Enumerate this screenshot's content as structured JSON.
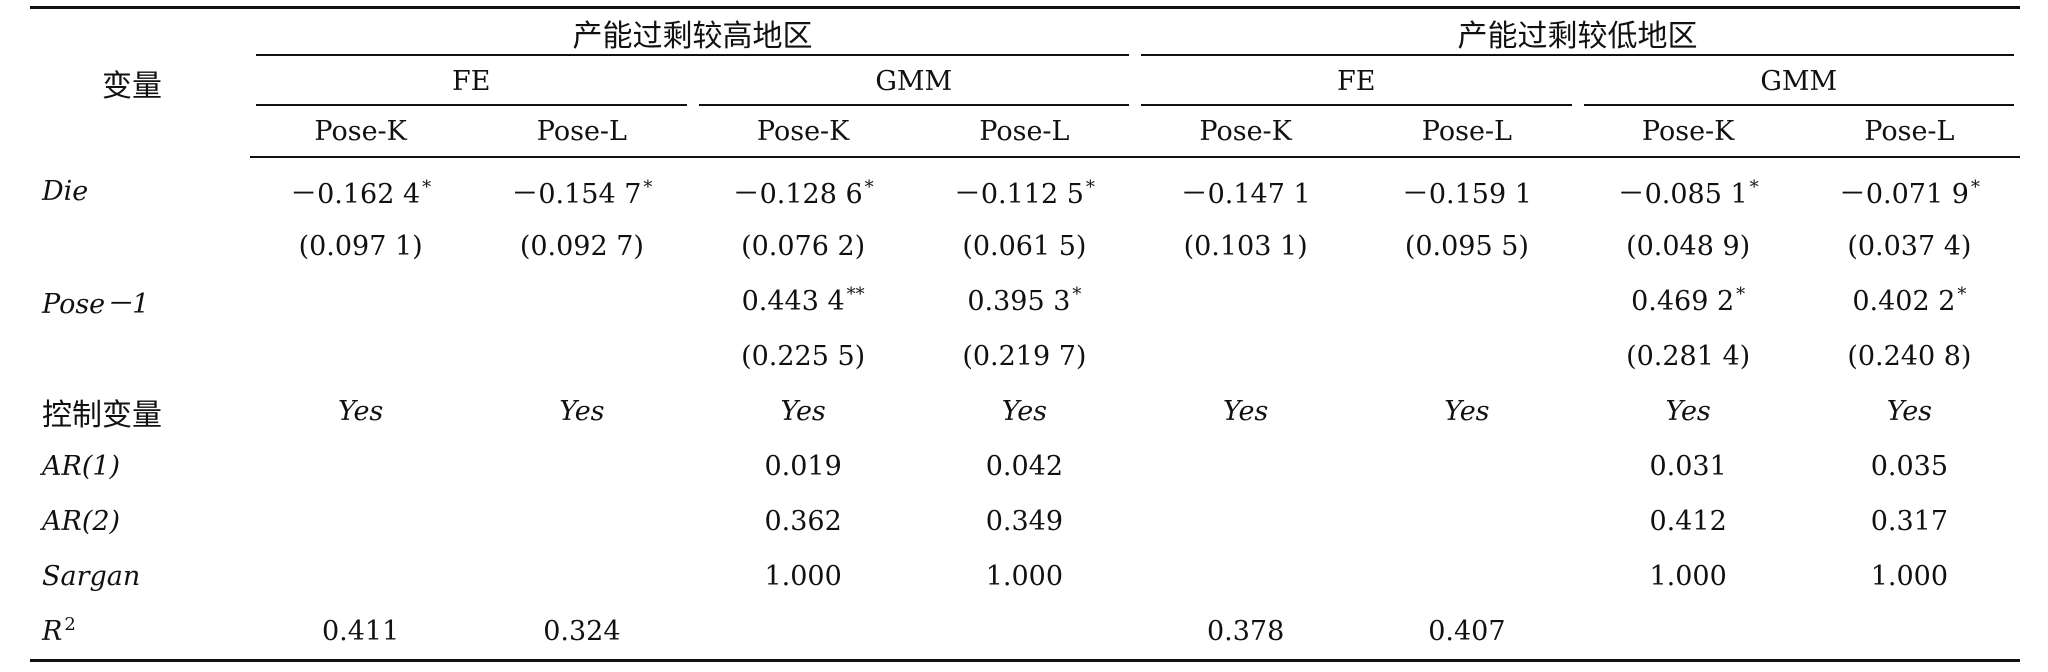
{
  "header": {
    "variable_label": "变量",
    "groups": [
      {
        "label": "产能过剩较高地区",
        "methods": [
          {
            "label": "FE",
            "cols": [
              "Pose-K",
              "Pose-L"
            ]
          },
          {
            "label": "GMM",
            "cols": [
              "Pose-K",
              "Pose-L"
            ]
          }
        ]
      },
      {
        "label": "产能过剩较低地区",
        "methods": [
          {
            "label": "FE",
            "cols": [
              "Pose-K",
              "Pose-L"
            ]
          },
          {
            "label": "GMM",
            "cols": [
              "Pose-K",
              "Pose-L"
            ]
          }
        ]
      }
    ]
  },
  "rows": [
    {
      "var": "Die",
      "var_italic": true,
      "cells": [
        {
          "v": "－0.162 4",
          "s": "*"
        },
        {
          "v": "－0.154 7",
          "s": "*"
        },
        {
          "v": "－0.128 6",
          "s": "*"
        },
        {
          "v": "－0.112 5",
          "s": "*"
        },
        {
          "v": "－0.147 1",
          "s": ""
        },
        {
          "v": "－0.159 1",
          "s": ""
        },
        {
          "v": "－0.085 1",
          "s": "*"
        },
        {
          "v": "－0.071 9",
          "s": "*"
        }
      ]
    },
    {
      "var": "",
      "cells": [
        {
          "v": "(0.097 1)",
          "s": ""
        },
        {
          "v": "(0.092 7)",
          "s": ""
        },
        {
          "v": "(0.076 2)",
          "s": ""
        },
        {
          "v": "(0.061 5)",
          "s": ""
        },
        {
          "v": "(0.103 1)",
          "s": ""
        },
        {
          "v": "(0.095 5)",
          "s": ""
        },
        {
          "v": "(0.048 9)",
          "s": ""
        },
        {
          "v": "(0.037 4)",
          "s": ""
        }
      ]
    },
    {
      "var": "Pose－1",
      "var_italic": true,
      "cells": [
        {
          "v": "",
          "s": ""
        },
        {
          "v": "",
          "s": ""
        },
        {
          "v": "0.443 4",
          "s": "**"
        },
        {
          "v": "0.395 3",
          "s": "*"
        },
        {
          "v": "",
          "s": ""
        },
        {
          "v": "",
          "s": ""
        },
        {
          "v": "0.469 2",
          "s": "*"
        },
        {
          "v": "0.402 2",
          "s": "*"
        }
      ]
    },
    {
      "var": "",
      "cells": [
        {
          "v": "",
          "s": ""
        },
        {
          "v": "",
          "s": ""
        },
        {
          "v": "(0.225 5)",
          "s": ""
        },
        {
          "v": "(0.219 7)",
          "s": ""
        },
        {
          "v": "",
          "s": ""
        },
        {
          "v": "",
          "s": ""
        },
        {
          "v": "(0.281 4)",
          "s": ""
        },
        {
          "v": "(0.240 8)",
          "s": ""
        }
      ]
    },
    {
      "var": "控制变量",
      "var_cn": true,
      "cells_italic": true,
      "cells": [
        {
          "v": "Yes",
          "s": ""
        },
        {
          "v": "Yes",
          "s": ""
        },
        {
          "v": "Yes",
          "s": ""
        },
        {
          "v": "Yes",
          "s": ""
        },
        {
          "v": "Yes",
          "s": ""
        },
        {
          "v": "Yes",
          "s": ""
        },
        {
          "v": "Yes",
          "s": ""
        },
        {
          "v": "Yes",
          "s": ""
        }
      ]
    },
    {
      "var": "AR(1)",
      "var_italic": true,
      "cells": [
        {
          "v": "",
          "s": ""
        },
        {
          "v": "",
          "s": ""
        },
        {
          "v": "0.019",
          "s": ""
        },
        {
          "v": "0.042",
          "s": ""
        },
        {
          "v": "",
          "s": ""
        },
        {
          "v": "",
          "s": ""
        },
        {
          "v": "0.031",
          "s": ""
        },
        {
          "v": "0.035",
          "s": ""
        }
      ]
    },
    {
      "var": "AR(2)",
      "var_italic": true,
      "cells": [
        {
          "v": "",
          "s": ""
        },
        {
          "v": "",
          "s": ""
        },
        {
          "v": "0.362",
          "s": ""
        },
        {
          "v": "0.349",
          "s": ""
        },
        {
          "v": "",
          "s": ""
        },
        {
          "v": "",
          "s": ""
        },
        {
          "v": "0.412",
          "s": ""
        },
        {
          "v": "0.317",
          "s": ""
        }
      ]
    },
    {
      "var": "Sargan",
      "var_italic": true,
      "cells": [
        {
          "v": "",
          "s": ""
        },
        {
          "v": "",
          "s": ""
        },
        {
          "v": "1.000",
          "s": ""
        },
        {
          "v": "1.000",
          "s": ""
        },
        {
          "v": "",
          "s": ""
        },
        {
          "v": "",
          "s": ""
        },
        {
          "v": "1.000",
          "s": ""
        },
        {
          "v": "1.000",
          "s": ""
        }
      ]
    },
    {
      "var": "R",
      "var_sup": "2",
      "var_italic": true,
      "cells": [
        {
          "v": "0.411",
          "s": ""
        },
        {
          "v": "0.324",
          "s": ""
        },
        {
          "v": "",
          "s": ""
        },
        {
          "v": "",
          "s": ""
        },
        {
          "v": "0.378",
          "s": ""
        },
        {
          "v": "0.407",
          "s": ""
        },
        {
          "v": "",
          "s": ""
        },
        {
          "v": "",
          "s": ""
        }
      ]
    }
  ]
}
